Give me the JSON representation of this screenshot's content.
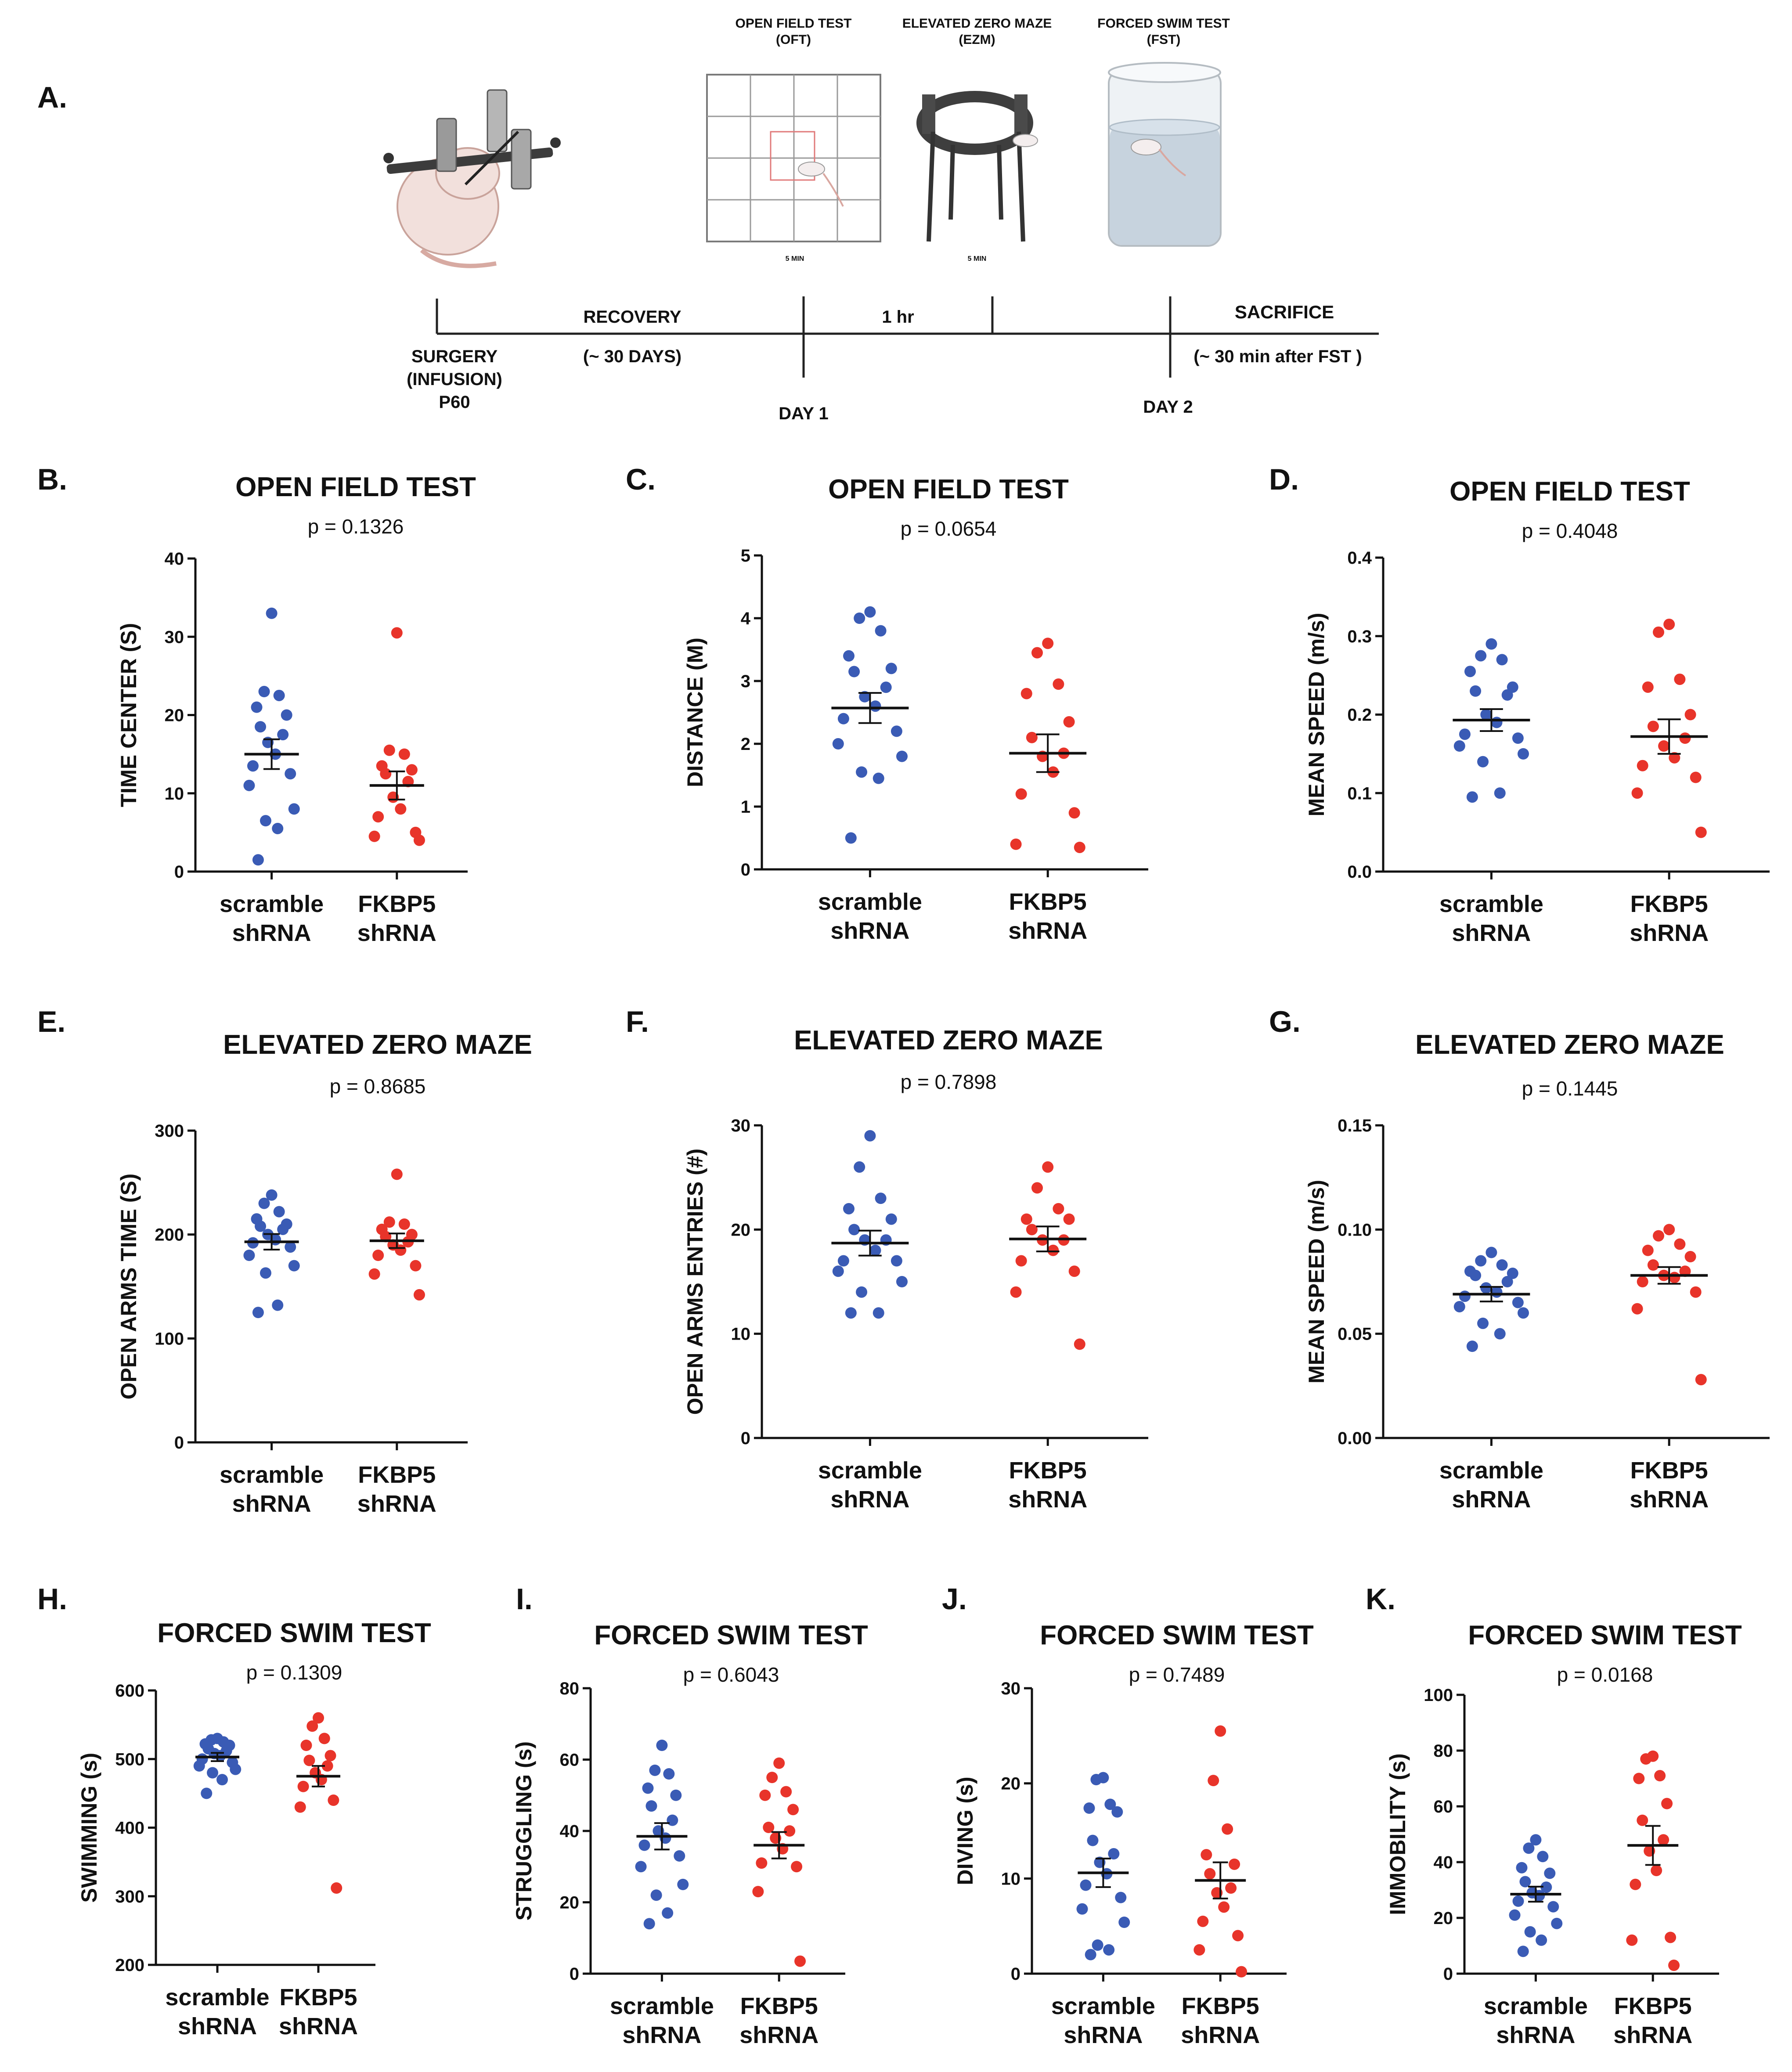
{
  "colors": {
    "scramble": "#3a5bb5",
    "fkbp5": "#e8342a",
    "axis": "#111111"
  },
  "panel_a": {
    "label": "A.",
    "tests": [
      {
        "name": "OPEN FIELD TEST",
        "abbr": "(OFT)",
        "duration": "5 MIN"
      },
      {
        "name": "ELEVATED ZERO MAZE",
        "abbr": "(EZM)",
        "duration": "5 MIN"
      },
      {
        "name": "FORCED SWIM TEST",
        "abbr": "(FST)",
        "duration": ""
      }
    ],
    "timeline": {
      "surgery": [
        "SURGERY",
        "(INFUSION)",
        "P60"
      ],
      "recovery": "RECOVERY",
      "recovery_days": "(~ 30 DAYS)",
      "interval": "1 hr",
      "sacrifice": "SACRIFICE",
      "sacrifice_time": "(~ 30 min after FST  )",
      "day1": "DAY 1",
      "day2": "DAY 2"
    }
  },
  "chart_data": [
    {
      "id": "B",
      "label": "B.",
      "type": "scatter",
      "title": "OPEN FIELD TEST",
      "p_value": "p = 0.1326",
      "ylabel": "TIME CENTER (S)",
      "ylim": [
        0,
        40
      ],
      "yticks": [
        0,
        10,
        20,
        30,
        40
      ],
      "tick_labels": [
        "0",
        "10",
        "20",
        "30",
        "40"
      ],
      "groups": [
        {
          "name_line1": "scramble",
          "name_line2": "shRNA",
          "mean": 15,
          "sem": 1.9,
          "values": [
            33,
            23,
            22.5,
            21,
            20,
            18.5,
            17.5,
            16.5,
            15,
            13.5,
            12.5,
            11,
            8,
            6.5,
            5.5,
            1.5
          ]
        },
        {
          "name_line1": "FKBP5",
          "name_line2": "shRNA",
          "mean": 11,
          "sem": 1.8,
          "values": [
            30.5,
            15.5,
            15,
            13.5,
            13,
            12.5,
            11.5,
            9.5,
            8,
            7,
            5,
            4.5,
            4
          ]
        }
      ]
    },
    {
      "id": "C",
      "label": "C.",
      "type": "scatter",
      "title": "OPEN FIELD TEST",
      "p_value": "p = 0.0654",
      "ylabel": "DISTANCE (M)",
      "ylim": [
        0,
        5
      ],
      "yticks": [
        0,
        1,
        2,
        3,
        4,
        5
      ],
      "tick_labels": [
        "0",
        "1",
        "2",
        "3",
        "4",
        "5"
      ],
      "groups": [
        {
          "name_line1": "scramble",
          "name_line2": "shRNA",
          "mean": 2.57,
          "sem": 0.24,
          "values": [
            4.1,
            4.0,
            3.8,
            3.4,
            3.2,
            3.15,
            2.9,
            2.75,
            2.6,
            2.4,
            2.2,
            2.0,
            1.8,
            1.55,
            1.45,
            0.5
          ]
        },
        {
          "name_line1": "FKBP5",
          "name_line2": "shRNA",
          "mean": 1.85,
          "sem": 0.3,
          "values": [
            3.6,
            3.45,
            2.95,
            2.8,
            2.35,
            2.1,
            1.85,
            1.8,
            1.55,
            1.2,
            0.9,
            0.4,
            0.35
          ]
        }
      ]
    },
    {
      "id": "D",
      "label": "D.",
      "type": "scatter",
      "title": "OPEN FIELD TEST",
      "p_value": "p = 0.4048",
      "ylabel": "MEAN SPEED (m/s)",
      "ylim": [
        0,
        0.4
      ],
      "yticks": [
        0,
        0.1,
        0.2,
        0.3,
        0.4
      ],
      "tick_labels": [
        "0.0",
        "0.1",
        "0.2",
        "0.3",
        "0.4"
      ],
      "groups": [
        {
          "name_line1": "scramble",
          "name_line2": "shRNA",
          "mean": 0.193,
          "sem": 0.014,
          "values": [
            0.29,
            0.275,
            0.27,
            0.255,
            0.235,
            0.23,
            0.225,
            0.2,
            0.19,
            0.175,
            0.17,
            0.16,
            0.15,
            0.14,
            0.1,
            0.095
          ]
        },
        {
          "name_line1": "FKBP5",
          "name_line2": "shRNA",
          "mean": 0.172,
          "sem": 0.022,
          "values": [
            0.315,
            0.305,
            0.245,
            0.235,
            0.2,
            0.185,
            0.17,
            0.16,
            0.145,
            0.135,
            0.12,
            0.1,
            0.05
          ]
        }
      ]
    },
    {
      "id": "E",
      "label": "E.",
      "type": "scatter",
      "title": "ELEVATED ZERO MAZE",
      "p_value": "p = 0.8685",
      "ylabel": "OPEN ARMS TIME (S)",
      "ylim": [
        0,
        300
      ],
      "yticks": [
        0,
        100,
        200,
        300
      ],
      "tick_labels": [
        "0",
        "100",
        "200",
        "300"
      ],
      "groups": [
        {
          "name_line1": "scramble",
          "name_line2": "shRNA",
          "mean": 193,
          "sem": 7.5,
          "values": [
            238,
            230,
            222,
            215,
            210,
            208,
            205,
            200,
            195,
            192,
            188,
            180,
            170,
            163,
            132,
            125
          ]
        },
        {
          "name_line1": "FKBP5",
          "name_line2": "shRNA",
          "mean": 194,
          "sem": 7,
          "values": [
            258,
            212,
            210,
            205,
            200,
            198,
            193,
            190,
            185,
            180,
            170,
            162,
            142
          ]
        }
      ]
    },
    {
      "id": "F",
      "label": "F.",
      "type": "scatter",
      "title": "ELEVATED ZERO MAZE",
      "p_value": "p = 0.7898",
      "ylabel": "OPEN ARMS ENTRIES (#)",
      "ylim": [
        0,
        30
      ],
      "yticks": [
        0,
        10,
        20,
        30
      ],
      "tick_labels": [
        "0",
        "10",
        "20",
        "30"
      ],
      "groups": [
        {
          "name_line1": "scramble",
          "name_line2": "shRNA",
          "mean": 18.7,
          "sem": 1.2,
          "values": [
            29,
            26,
            23,
            22,
            21,
            20,
            19,
            19,
            18,
            17,
            17,
            16,
            15,
            14,
            12,
            12
          ]
        },
        {
          "name_line1": "FKBP5",
          "name_line2": "shRNA",
          "mean": 19.1,
          "sem": 1.2,
          "values": [
            26,
            24,
            22,
            21,
            21,
            20,
            19,
            19,
            18,
            17,
            16,
            14,
            9
          ]
        }
      ]
    },
    {
      "id": "G",
      "label": "G.",
      "type": "scatter",
      "title": "ELEVATED ZERO MAZE",
      "p_value": "p = 0.1445",
      "ylabel": "MEAN SPEED (m/s)",
      "ylim": [
        0,
        0.15
      ],
      "yticks": [
        0,
        0.05,
        0.1,
        0.15
      ],
      "tick_labels": [
        "0.00",
        "0.05",
        "0.10",
        "0.15"
      ],
      "groups": [
        {
          "name_line1": "scramble",
          "name_line2": "shRNA",
          "mean": 0.069,
          "sem": 0.0035,
          "values": [
            0.089,
            0.085,
            0.083,
            0.08,
            0.079,
            0.078,
            0.075,
            0.072,
            0.07,
            0.068,
            0.065,
            0.063,
            0.06,
            0.055,
            0.05,
            0.044
          ]
        },
        {
          "name_line1": "FKBP5",
          "name_line2": "shRNA",
          "mean": 0.078,
          "sem": 0.004,
          "values": [
            0.1,
            0.097,
            0.093,
            0.09,
            0.087,
            0.083,
            0.08,
            0.078,
            0.077,
            0.075,
            0.07,
            0.062,
            0.028
          ]
        }
      ]
    },
    {
      "id": "H",
      "label": "H.",
      "type": "scatter",
      "title": "FORCED SWIM TEST",
      "p_value": "p = 0.1309",
      "ylabel": "SWIMMING (s)",
      "ylim": [
        200,
        600
      ],
      "yticks": [
        200,
        300,
        400,
        500,
        600
      ],
      "tick_labels": [
        "200",
        "300",
        "400",
        "500",
        "600"
      ],
      "groups": [
        {
          "name_line1": "scramble",
          "name_line2": "shRNA",
          "mean": 503,
          "sem": 6,
          "values": [
            530,
            528,
            525,
            522,
            520,
            515,
            512,
            508,
            505,
            500,
            495,
            490,
            485,
            480,
            470,
            450
          ]
        },
        {
          "name_line1": "FKBP5",
          "name_line2": "shRNA",
          "mean": 475,
          "sem": 15,
          "values": [
            560,
            548,
            530,
            520,
            505,
            498,
            490,
            480,
            470,
            460,
            440,
            430,
            312
          ]
        }
      ]
    },
    {
      "id": "I",
      "label": "I.",
      "type": "scatter",
      "title": "FORCED SWIM TEST",
      "p_value": "p = 0.6043",
      "ylabel": "STRUGGLING (s)",
      "ylim": [
        0,
        80
      ],
      "yticks": [
        0,
        20,
        40,
        60,
        80
      ],
      "tick_labels": [
        "0",
        "20",
        "40",
        "60",
        "80"
      ],
      "groups": [
        {
          "name_line1": "scramble",
          "name_line2": "shRNA",
          "mean": 38.5,
          "sem": 3.7,
          "values": [
            64,
            57,
            56,
            52,
            50,
            47,
            43,
            40,
            38,
            36,
            33,
            30,
            25,
            22,
            17,
            14
          ]
        },
        {
          "name_line1": "FKBP5",
          "name_line2": "shRNA",
          "mean": 36,
          "sem": 3.7,
          "values": [
            59,
            55,
            51,
            50,
            46,
            41,
            40,
            38,
            35,
            31,
            30,
            23,
            3.5
          ]
        }
      ]
    },
    {
      "id": "J",
      "label": "J.",
      "type": "scatter",
      "title": "FORCED SWIM TEST",
      "p_value": "p = 0.7489",
      "ylabel": "DIVING (s)",
      "ylim": [
        0,
        30
      ],
      "yticks": [
        0,
        10,
        20,
        30
      ],
      "tick_labels": [
        "0",
        "10",
        "20",
        "30"
      ],
      "groups": [
        {
          "name_line1": "scramble",
          "name_line2": "shRNA",
          "mean": 10.6,
          "sem": 1.5,
          "values": [
            20.6,
            20.4,
            17.8,
            17.4,
            17,
            14,
            12.6,
            11.7,
            10.5,
            9.3,
            8,
            6.8,
            5.4,
            3,
            2.5,
            2
          ]
        },
        {
          "name_line1": "FKBP5",
          "name_line2": "shRNA",
          "mean": 9.8,
          "sem": 1.9,
          "values": [
            25.5,
            20.3,
            15.2,
            12.5,
            11.5,
            10.5,
            9,
            8.5,
            7,
            5.5,
            4,
            2.5,
            0.2
          ]
        }
      ]
    },
    {
      "id": "K",
      "label": "K.",
      "type": "scatter",
      "title": "FORCED SWIM TEST",
      "p_value": "p = 0.0168",
      "ylabel": "IMMOBILITY (s)",
      "ylim": [
        0,
        100
      ],
      "yticks": [
        0,
        20,
        40,
        60,
        80,
        100
      ],
      "tick_labels": [
        "0",
        "20",
        "40",
        "60",
        "80",
        "100"
      ],
      "groups": [
        {
          "name_line1": "scramble",
          "name_line2": "shRNA",
          "mean": 28.5,
          "sem": 2.7,
          "values": [
            48,
            45,
            42,
            38,
            36,
            33,
            31,
            29,
            28,
            26,
            24,
            21,
            18,
            15,
            12,
            8
          ]
        },
        {
          "name_line1": "FKBP5",
          "name_line2": "shRNA",
          "mean": 46,
          "sem": 7,
          "values": [
            78,
            77,
            71,
            70,
            61,
            55,
            48,
            44,
            37,
            32,
            13,
            12,
            3
          ]
        }
      ]
    }
  ]
}
